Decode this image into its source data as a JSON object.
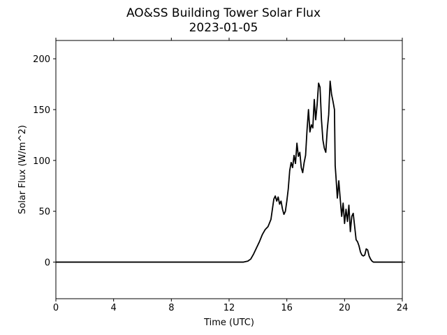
{
  "chart_data": {
    "type": "line",
    "title": "AO&SS Building Tower Solar Flux",
    "subtitle": "2023-01-05",
    "xlabel": "Time (UTC)",
    "ylabel": "Solar Flux (W/m^2)",
    "xlim": [
      0,
      24
    ],
    "ylim": [
      -36,
      218
    ],
    "xticks": [
      0,
      4,
      8,
      12,
      16,
      20,
      24
    ],
    "yticks": [
      0,
      50,
      100,
      150,
      200
    ],
    "grid": false,
    "line_color": "#000000",
    "series": [
      {
        "x": [
          0,
          2,
          4,
          6,
          8,
          10,
          12,
          13.0,
          13.3,
          13.5,
          13.7,
          13.9,
          14.1,
          14.3,
          14.5,
          14.7,
          14.9,
          15.0,
          15.1,
          15.2,
          15.3,
          15.4,
          15.5,
          15.6,
          15.7,
          15.8,
          15.9,
          16.0,
          16.1,
          16.2,
          16.3,
          16.4,
          16.5,
          16.6,
          16.7,
          16.8,
          16.9,
          17.0,
          17.1,
          17.2,
          17.3,
          17.4,
          17.5,
          17.6,
          17.7,
          17.8,
          17.9,
          18.0,
          18.1,
          18.2,
          18.3,
          18.4,
          18.5,
          18.6,
          18.7,
          18.8,
          18.9,
          19.0,
          19.1,
          19.2,
          19.3,
          19.35,
          19.4,
          19.5,
          19.6,
          19.7,
          19.8,
          19.9,
          20.0,
          20.1,
          20.2,
          20.3,
          20.4,
          20.5,
          20.6,
          20.7,
          20.8,
          20.9,
          21.0,
          21.1,
          21.2,
          21.3,
          21.4,
          21.5,
          21.6,
          21.7,
          21.8,
          21.9,
          22.0,
          22.1,
          22.2,
          22.3,
          22.4,
          22.6,
          22.8,
          23.0,
          24.0
        ],
        "y": [
          0,
          0,
          0,
          0,
          0,
          0,
          0,
          0,
          1,
          3,
          8,
          14,
          20,
          27,
          32,
          35,
          42,
          52,
          62,
          65,
          60,
          64,
          57,
          60,
          52,
          47,
          50,
          60,
          72,
          90,
          98,
          93,
          105,
          97,
          117,
          104,
          108,
          93,
          88,
          98,
          105,
          130,
          150,
          128,
          135,
          132,
          160,
          140,
          155,
          176,
          172,
          140,
          120,
          112,
          108,
          130,
          145,
          178,
          165,
          158,
          150,
          95,
          85,
          63,
          80,
          62,
          45,
          58,
          38,
          52,
          40,
          56,
          30,
          45,
          48,
          35,
          22,
          20,
          16,
          10,
          7,
          6,
          7,
          13,
          12,
          6,
          3,
          1,
          0,
          0,
          0,
          0,
          0,
          0,
          0,
          0,
          0
        ]
      }
    ]
  }
}
